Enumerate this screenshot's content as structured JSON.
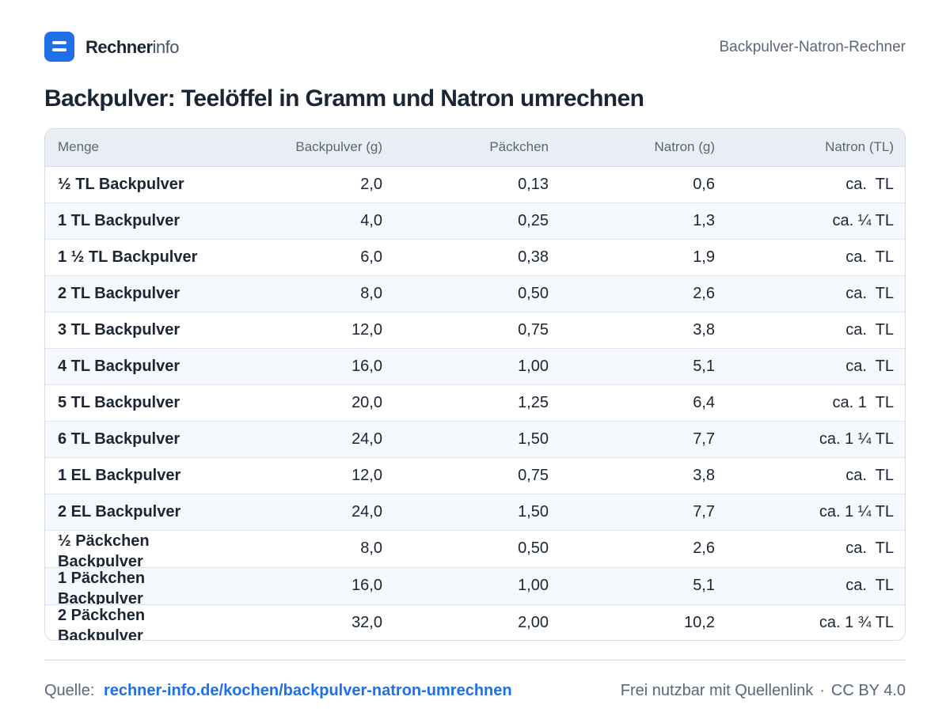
{
  "brand": {
    "name_strong": "Rechner",
    "name_light": "info"
  },
  "header": {
    "right_label": "Backpulver-Natron-Rechner"
  },
  "title": "Backpulver: Teelöffel in Gramm und Natron umrechnen",
  "table": {
    "columns": [
      "Menge",
      "Backpulver (g)",
      "Päckchen",
      "Natron (g)",
      "Natron (TL)"
    ],
    "rows": [
      [
        "½ TL Backpulver",
        "2,0",
        "0,13",
        "0,6",
        "ca.  TL"
      ],
      [
        "1 TL Backpulver",
        "4,0",
        "0,25",
        "1,3",
        "ca. ¼ TL"
      ],
      [
        "1 ½ TL Backpulver",
        "6,0",
        "0,38",
        "1,9",
        "ca.  TL"
      ],
      [
        "2 TL Backpulver",
        "8,0",
        "0,50",
        "2,6",
        "ca.  TL"
      ],
      [
        "3 TL Backpulver",
        "12,0",
        "0,75",
        "3,8",
        "ca.  TL"
      ],
      [
        "4 TL Backpulver",
        "16,0",
        "1,00",
        "5,1",
        "ca.  TL"
      ],
      [
        "5 TL Backpulver",
        "20,0",
        "1,25",
        "6,4",
        "ca. 1  TL"
      ],
      [
        "6 TL Backpulver",
        "24,0",
        "1,50",
        "7,7",
        "ca. 1 ¼ TL"
      ],
      [
        "1 EL Backpulver",
        "12,0",
        "0,75",
        "3,8",
        "ca.  TL"
      ],
      [
        "2 EL Backpulver",
        "24,0",
        "1,50",
        "7,7",
        "ca. 1 ¼ TL"
      ],
      [
        "½ Päckchen Backpulver",
        "8,0",
        "0,50",
        "2,6",
        "ca.  TL"
      ],
      [
        "1 Päckchen Backpulver",
        "16,0",
        "1,00",
        "5,1",
        "ca.  TL"
      ],
      [
        "2 Päckchen Backpulver",
        "32,0",
        "2,00",
        "10,2",
        "ca. 1 ¾ TL"
      ]
    ]
  },
  "footer": {
    "source_label": "Quelle:",
    "source_link": "rechner-info.de/kochen/backpulver-natron-umrechnen",
    "license_text": "Frei nutzbar mit Quellenlink",
    "separator": "·",
    "license": "CC BY 4.0"
  },
  "colors": {
    "accent": "#1f6fe6",
    "header_bg": "#e9eef5",
    "row_alt": "#f5f8fc",
    "text": "#1b2533",
    "muted": "#5b6678"
  },
  "icons": {
    "logo": "rechner-logo-icon"
  }
}
